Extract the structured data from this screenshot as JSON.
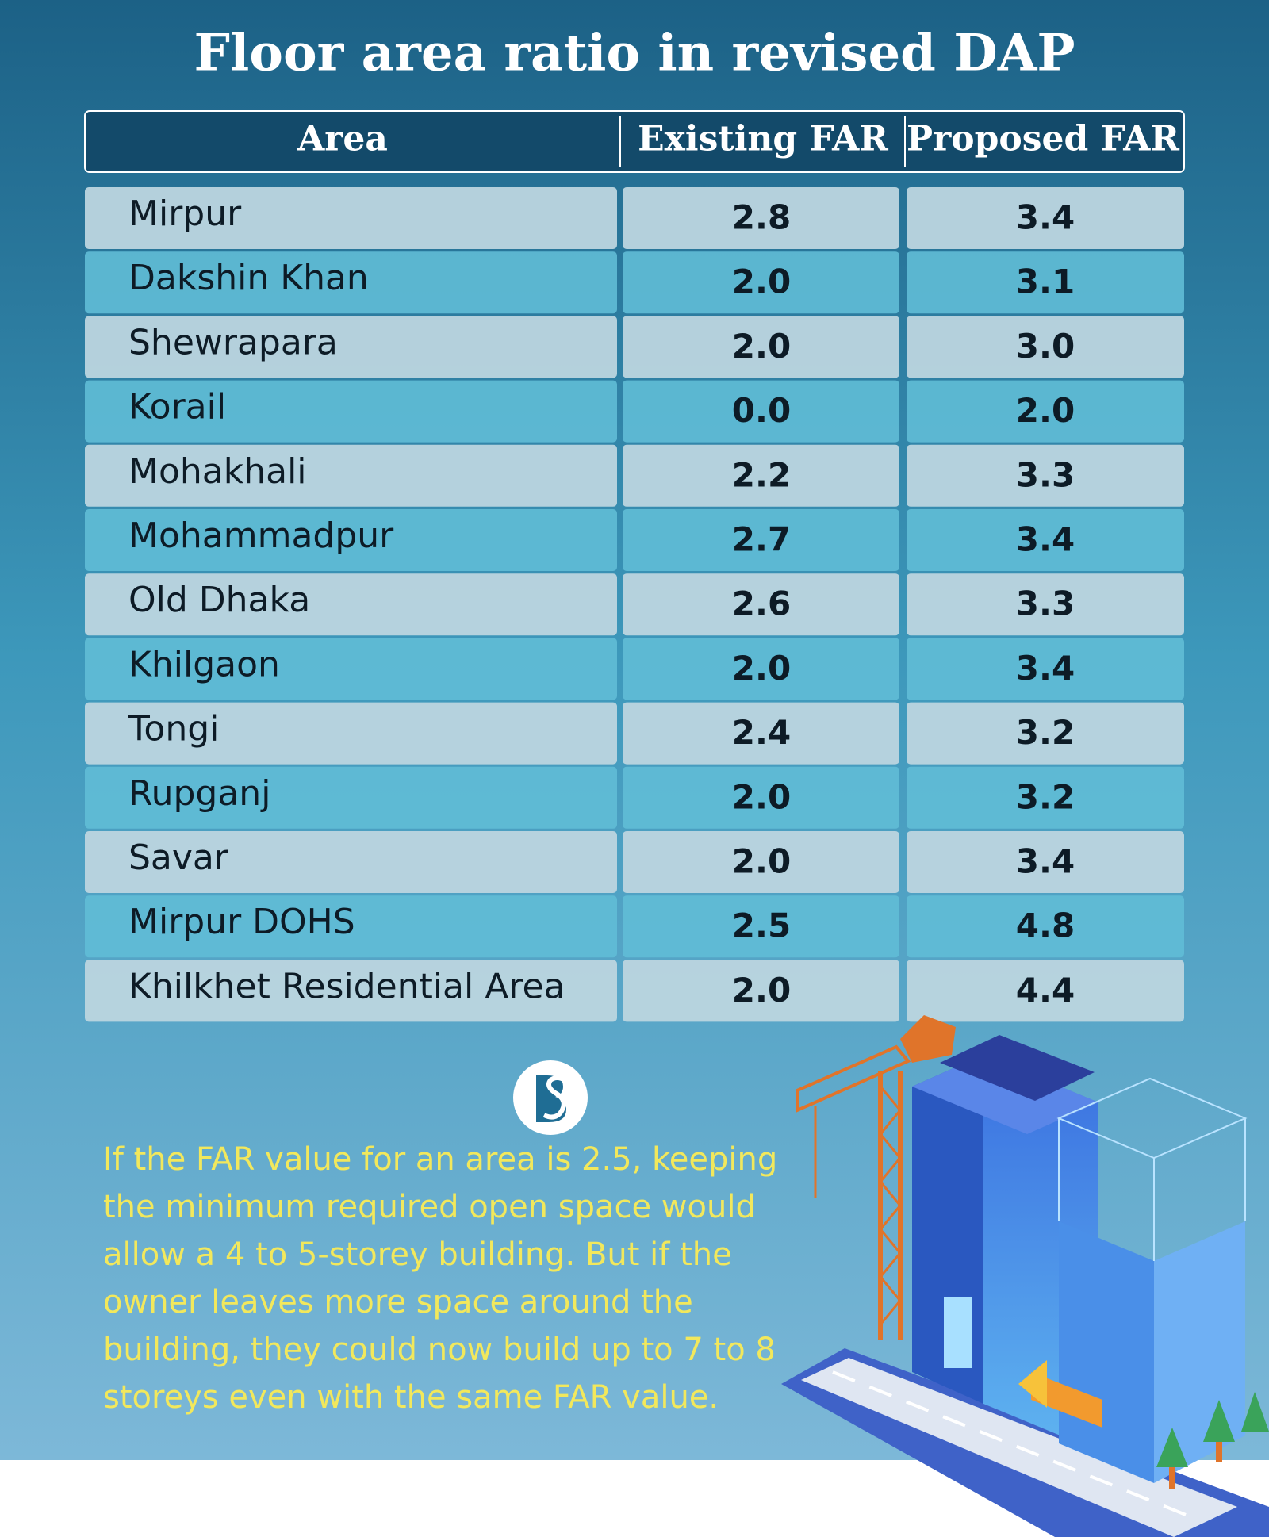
{
  "title": "Floor area ratio in revised DAP",
  "table": {
    "header": [
      "Area",
      "Existing FAR",
      "Proposed FAR"
    ],
    "rows": [
      [
        "Mirpur",
        "2.8",
        "3.4"
      ],
      [
        "Dakshin Khan",
        "2.0",
        "3.1"
      ],
      [
        "Shewrapara",
        "2.0",
        "3.0"
      ],
      [
        "Korail",
        "0.0",
        "2.0"
      ],
      [
        "Mohakhali",
        "2.2",
        "3.3"
      ],
      [
        "Mohammadpur",
        "2.7",
        "3.4"
      ],
      [
        "Old Dhaka",
        "2.6",
        "3.3"
      ],
      [
        "Khilgaon",
        "2.0",
        "3.4"
      ],
      [
        "Tongi",
        "2.4",
        "3.2"
      ],
      [
        "Rupganj",
        "2.0",
        "3.2"
      ],
      [
        "Savar",
        "2.0",
        "3.4"
      ],
      [
        "Mirpur DOHS",
        "2.5",
        "4.8"
      ],
      [
        "Khilkhet Residential Area",
        "2.0",
        "4.4"
      ]
    ]
  },
  "note": {
    "lines": [
      "If the FAR value for an area is 2.5, keeping",
      " the minimum required open space would",
      "allow a 4 to 5-storey building. But if the",
      "owner leaves more space around the",
      "building, they could now build up to 7 to 8",
      "storeys even with the same FAR value."
    ]
  }
}
